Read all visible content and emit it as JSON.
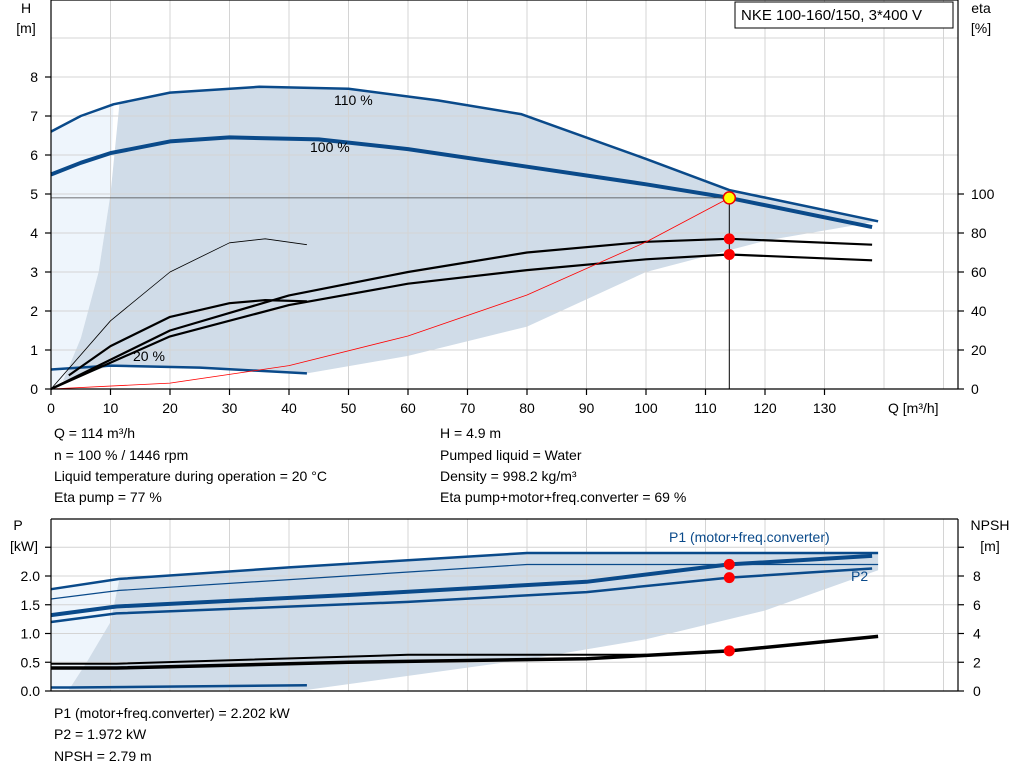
{
  "title": "NKE 100-160/150, 3*400 V",
  "colors": {
    "curve": "#0a4a8a",
    "fill": "#d0dce8",
    "light_fill": "#eef5fc",
    "system": "#ff0000",
    "eta": "#000000",
    "point": "#ff0000",
    "duty_point": "#ffff00"
  },
  "chart_data": [
    {
      "type": "line",
      "title": "NKE 100-160/150, 3*400 V",
      "xlabel": "Q [m³/h]",
      "ylabel": "H",
      "yunit": "[m]",
      "y2label": "eta",
      "y2unit": "[%]",
      "xlim": [
        0,
        150
      ],
      "ylim": [
        0,
        10
      ],
      "y2lim": [
        0,
        200
      ],
      "grid": true,
      "xticks": [
        0,
        10,
        20,
        30,
        40,
        50,
        60,
        70,
        80,
        90,
        100,
        110,
        120,
        130
      ],
      "yticks": [
        0,
        1,
        2,
        3,
        4,
        5,
        6,
        7,
        8
      ],
      "y2ticks": [
        0,
        20,
        40,
        60,
        80,
        100
      ],
      "labels": {
        "c110": "110 %",
        "c100": "100 %",
        "c20": "20 %"
      },
      "series": [
        {
          "id": "h110",
          "axis": "H",
          "x": [
            0,
            5,
            10.5,
            20,
            35,
            50,
            65,
            79,
            100,
            114,
            139
          ],
          "y": [
            6.6,
            7.0,
            7.3,
            7.6,
            7.75,
            7.7,
            7.4,
            7.05,
            5.9,
            5.1,
            4.3
          ]
        },
        {
          "id": "h100",
          "axis": "H",
          "x": [
            0,
            5,
            10,
            20,
            30,
            45,
            60,
            80,
            100,
            114,
            138
          ],
          "y": [
            5.5,
            5.8,
            6.05,
            6.35,
            6.45,
            6.4,
            6.15,
            5.7,
            5.25,
            4.9,
            4.15
          ]
        },
        {
          "id": "h20",
          "axis": "H",
          "x": [
            0,
            10,
            25,
            43
          ],
          "y": [
            0.5,
            0.6,
            0.55,
            0.4
          ]
        },
        {
          "id": "eta_pump",
          "axis": "eta",
          "x": [
            0,
            20,
            40,
            60,
            80,
            100,
            114,
            138
          ],
          "y": [
            0,
            30,
            48,
            60,
            70,
            75.5,
            77,
            74
          ]
        },
        {
          "id": "eta_total",
          "axis": "eta",
          "x": [
            0,
            20,
            40,
            60,
            80,
            100,
            114,
            138
          ],
          "y": [
            0,
            27,
            43,
            54,
            61,
            66.5,
            69,
            66
          ]
        },
        {
          "id": "eta_low_a",
          "axis": "eta",
          "x": [
            0,
            10,
            20,
            30,
            36,
            43
          ],
          "y": [
            0,
            35,
            60,
            75,
            77,
            74
          ]
        },
        {
          "id": "eta_low_b",
          "axis": "eta",
          "x": [
            3,
            10,
            20,
            30,
            36,
            43
          ],
          "y": [
            7,
            22,
            37,
            44,
            45.6,
            45
          ]
        },
        {
          "id": "system",
          "axis": "H",
          "x": [
            0,
            20,
            40,
            60,
            80,
            100,
            114
          ],
          "y": [
            0,
            0.15,
            0.6,
            1.36,
            2.41,
            3.77,
            4.9
          ]
        }
      ],
      "duty_point": {
        "Q": 114,
        "H": 4.9,
        "eta_pump": 77,
        "eta_total": 69
      }
    },
    {
      "type": "line",
      "ylabel": "P",
      "yunit": "[kW]",
      "y2label": "NPSH",
      "y2unit": "[m]",
      "xlim": [
        0,
        150
      ],
      "ylim": [
        0,
        3
      ],
      "y2lim": [
        0,
        12
      ],
      "grid": true,
      "yticks": [
        "0.0",
        "0.5",
        "1.0",
        "1.5",
        "2.0"
      ],
      "y2ticks": [
        0,
        2,
        4,
        6,
        8
      ],
      "labels": {
        "p1": "P1 (motor+freq.converter)",
        "p2": "P2"
      },
      "series": [
        {
          "id": "p1_110",
          "axis": "P",
          "x": [
            0,
            11.5,
            40,
            80,
            139
          ],
          "y": [
            1.77,
            1.95,
            2.15,
            2.4,
            2.4
          ]
        },
        {
          "id": "p2_110",
          "axis": "P",
          "x": [
            0,
            11.5,
            80,
            139
          ],
          "y": [
            1.6,
            1.75,
            2.2,
            2.2
          ]
        },
        {
          "id": "p1_100",
          "axis": "P",
          "x": [
            0,
            11,
            50,
            90,
            114,
            138
          ],
          "y": [
            1.32,
            1.47,
            1.67,
            1.9,
            2.202,
            2.35
          ]
        },
        {
          "id": "p2_100",
          "axis": "P",
          "x": [
            0,
            11,
            60,
            90,
            114,
            138
          ],
          "y": [
            1.2,
            1.35,
            1.55,
            1.72,
            1.972,
            2.13
          ]
        },
        {
          "id": "npsh_a",
          "axis": "NPSH",
          "x": [
            0,
            11,
            50,
            90,
            114,
            139
          ],
          "y": [
            1.6,
            1.6,
            2.0,
            2.25,
            2.79,
            3.8
          ]
        },
        {
          "id": "npsh_b",
          "axis": "NPSH",
          "x": [
            0,
            11,
            60,
            100
          ],
          "y": [
            1.9,
            1.9,
            2.52,
            2.52
          ]
        },
        {
          "id": "p_low",
          "axis": "P",
          "x": [
            0,
            3,
            43
          ],
          "y": [
            0.06,
            0.06,
            0.1
          ]
        }
      ],
      "points": {
        "P1": 2.202,
        "P2": 1.972,
        "NPSH": 2.79
      }
    }
  ],
  "info_top": {
    "left": [
      "Q = 114 m³/h",
      "n = 100 % / 1446 rpm",
      "Liquid temperature during operation = 20 °C",
      "Eta pump = 77 %"
    ],
    "right": [
      "H = 4.9 m",
      "Pumped liquid = Water",
      "Density = 998.2 kg/m³",
      "Eta pump+motor+freq.converter = 69 %"
    ]
  },
  "info_bottom": [
    "P1 (motor+freq.converter) = 2.202 kW",
    "P2 = 1.972 kW",
    "NPSH = 2.79 m"
  ]
}
